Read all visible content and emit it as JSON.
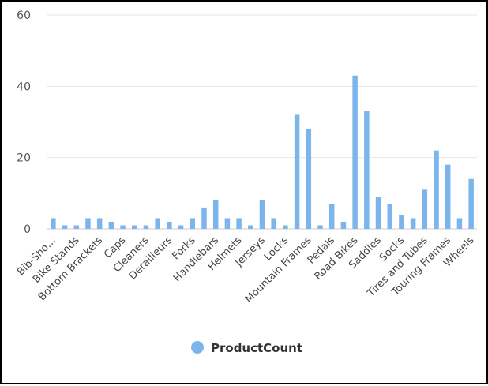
{
  "chart_data": {
    "type": "bar",
    "categories": [
      "Bib-Sho…",
      "",
      "Bike Stands",
      "",
      "Bottom Brackets",
      "",
      "Caps",
      "",
      "Cleaners",
      "",
      "Derailleurs",
      "",
      "Forks",
      "",
      "Handlebars",
      "",
      "Helmets",
      "",
      "Jerseys",
      "",
      "Locks",
      "",
      "Mountain Frames",
      "",
      "Pedals",
      "",
      "Road Bikes",
      "",
      "Saddles",
      "",
      "Socks",
      "",
      "Tires and Tubes",
      "",
      "Touring Frames",
      "",
      "Wheels"
    ],
    "series": [
      {
        "name": "ProductCount",
        "values": [
          3,
          1,
          1,
          3,
          3,
          2,
          1,
          1,
          1,
          3,
          2,
          1,
          3,
          6,
          8,
          3,
          3,
          1,
          8,
          3,
          1,
          32,
          28,
          1,
          7,
          2,
          43,
          33,
          9,
          7,
          4,
          3,
          11,
          22,
          18,
          3,
          14
        ],
        "color": "#7cb5ec"
      }
    ],
    "xlabel": "",
    "ylabel": "",
    "ylim": [
      0,
      60
    ],
    "yticks": [
      0,
      20,
      40,
      60
    ],
    "grid": true,
    "legend": "bottom-center"
  }
}
